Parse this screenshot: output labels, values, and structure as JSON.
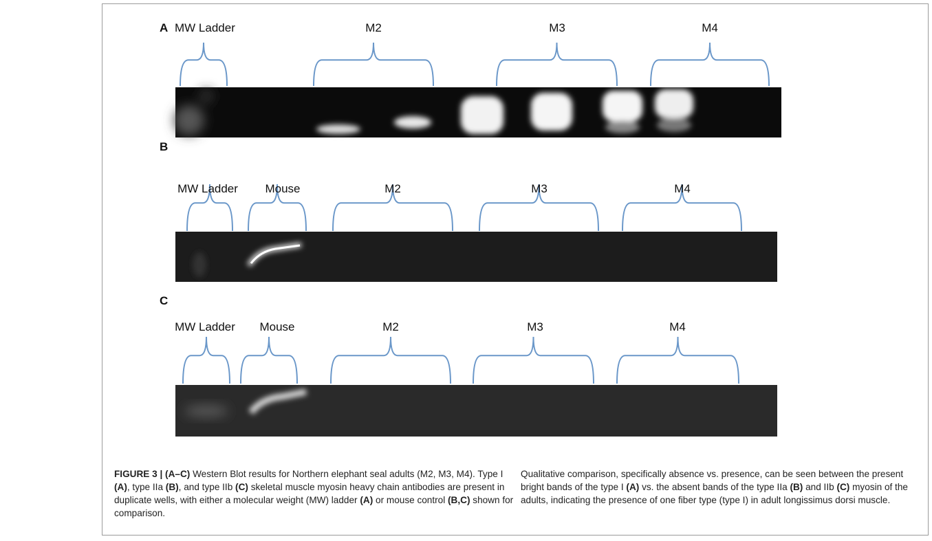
{
  "panels": [
    {
      "letter": "A",
      "lanes": [
        "MW Ladder",
        "M2",
        "M3",
        "M4"
      ]
    },
    {
      "letter": "B",
      "lanes": [
        "MW Ladder",
        "Mouse",
        "M2",
        "M3",
        "M4"
      ]
    },
    {
      "letter": "C",
      "lanes": [
        "MW Ladder",
        "Mouse",
        "M2",
        "M3",
        "M4"
      ]
    }
  ],
  "caption": {
    "left": [
      {
        "text": "FIGURE 3 | (A–C)",
        "bold": true
      },
      {
        "text": " Western Blot results for Northern elephant seal adults (M2, M3, M4). Type I ",
        "bold": false
      },
      {
        "text": "(A)",
        "bold": true
      },
      {
        "text": ", type IIa ",
        "bold": false
      },
      {
        "text": "(B)",
        "bold": true
      },
      {
        "text": ", and type IIb ",
        "bold": false
      },
      {
        "text": "(C)",
        "bold": true
      },
      {
        "text": " skeletal muscle myosin heavy chain antibodies are present in duplicate wells, with either a molecular weight (MW) ladder ",
        "bold": false
      },
      {
        "text": "(A)",
        "bold": true
      },
      {
        "text": " or mouse control ",
        "bold": false
      },
      {
        "text": "(B,C)",
        "bold": true
      },
      {
        "text": " shown for comparison.",
        "bold": false
      }
    ],
    "right": [
      {
        "text": "Qualitative comparison, specifically absence vs. presence, can be seen between the present bright bands of the type I ",
        "bold": false
      },
      {
        "text": "(A)",
        "bold": true
      },
      {
        "text": " vs. the absent bands of the type IIa ",
        "bold": false
      },
      {
        "text": "(B)",
        "bold": true
      },
      {
        "text": " and IIb ",
        "bold": false
      },
      {
        "text": "(C)",
        "bold": true
      },
      {
        "text": " myosin of the adults, indicating the presence of one fiber type (type I) in adult longissimus dorsi muscle.",
        "bold": false
      }
    ]
  }
}
